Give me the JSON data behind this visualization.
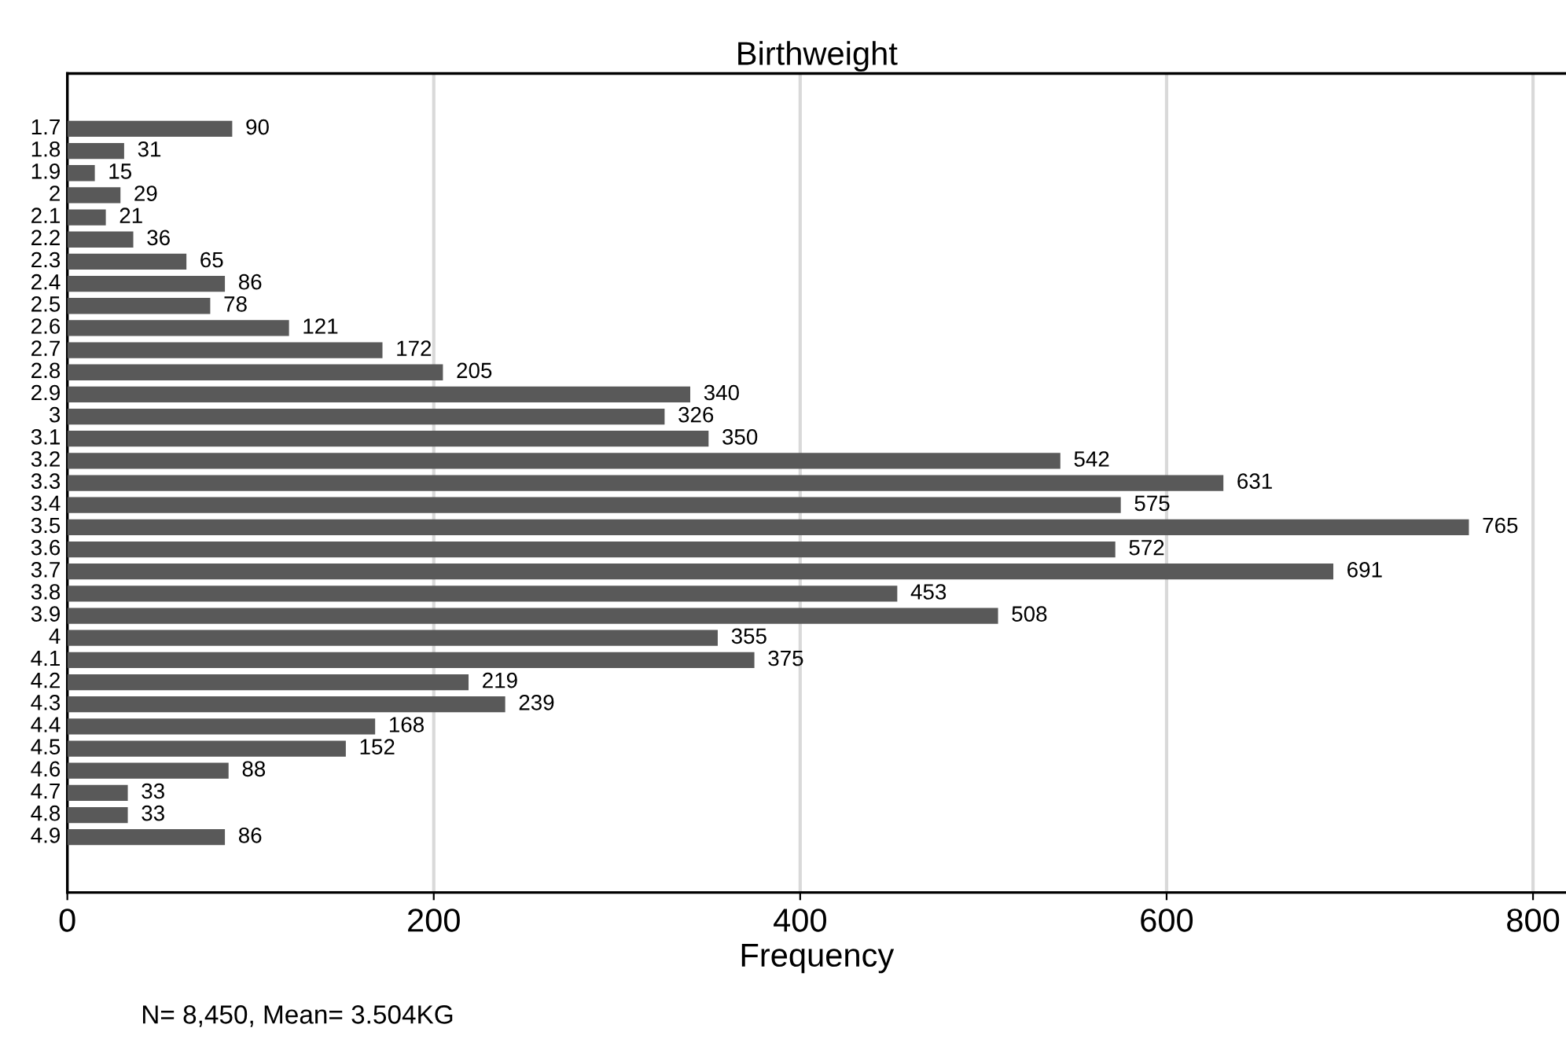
{
  "chart_data": {
    "type": "bar",
    "orientation": "horizontal",
    "title": "Birthweight",
    "xlabel": "Frequency",
    "categories": [
      "1.7",
      "1.8",
      "1.9",
      "2",
      "2.1",
      "2.2",
      "2.3",
      "2.4",
      "2.5",
      "2.6",
      "2.7",
      "2.8",
      "2.9",
      "3",
      "3.1",
      "3.2",
      "3.3",
      "3.4",
      "3.5",
      "3.6",
      "3.7",
      "3.8",
      "3.9",
      "4",
      "4.1",
      "4.2",
      "4.3",
      "4.4",
      "4.5",
      "4.6",
      "4.7",
      "4.8",
      "4.9"
    ],
    "values": [
      90,
      31,
      15,
      29,
      21,
      36,
      65,
      86,
      78,
      121,
      172,
      205,
      340,
      326,
      350,
      542,
      631,
      575,
      765,
      572,
      691,
      453,
      508,
      355,
      375,
      219,
      239,
      168,
      152,
      88,
      33,
      33,
      86
    ],
    "color": "#595959",
    "data_labels": true,
    "xlim": [
      0,
      818
    ],
    "xticks": [
      0,
      200,
      400,
      600,
      800
    ],
    "grid": "x",
    "annotations": [
      "N= 8,450, Mean= 3.504KG"
    ]
  }
}
